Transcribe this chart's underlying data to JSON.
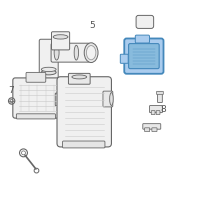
{
  "bg_color": "#ffffff",
  "line_color": "#999999",
  "dark_line": "#666666",
  "highlight_color": "#4488bb",
  "highlight_fill": "#88bbdd",
  "highlight_fill2": "#aaccee",
  "labels": {
    "5": [
      0.46,
      0.88
    ],
    "7": [
      0.05,
      0.55
    ],
    "8": [
      0.82,
      0.45
    ]
  },
  "title_color": "#555555"
}
